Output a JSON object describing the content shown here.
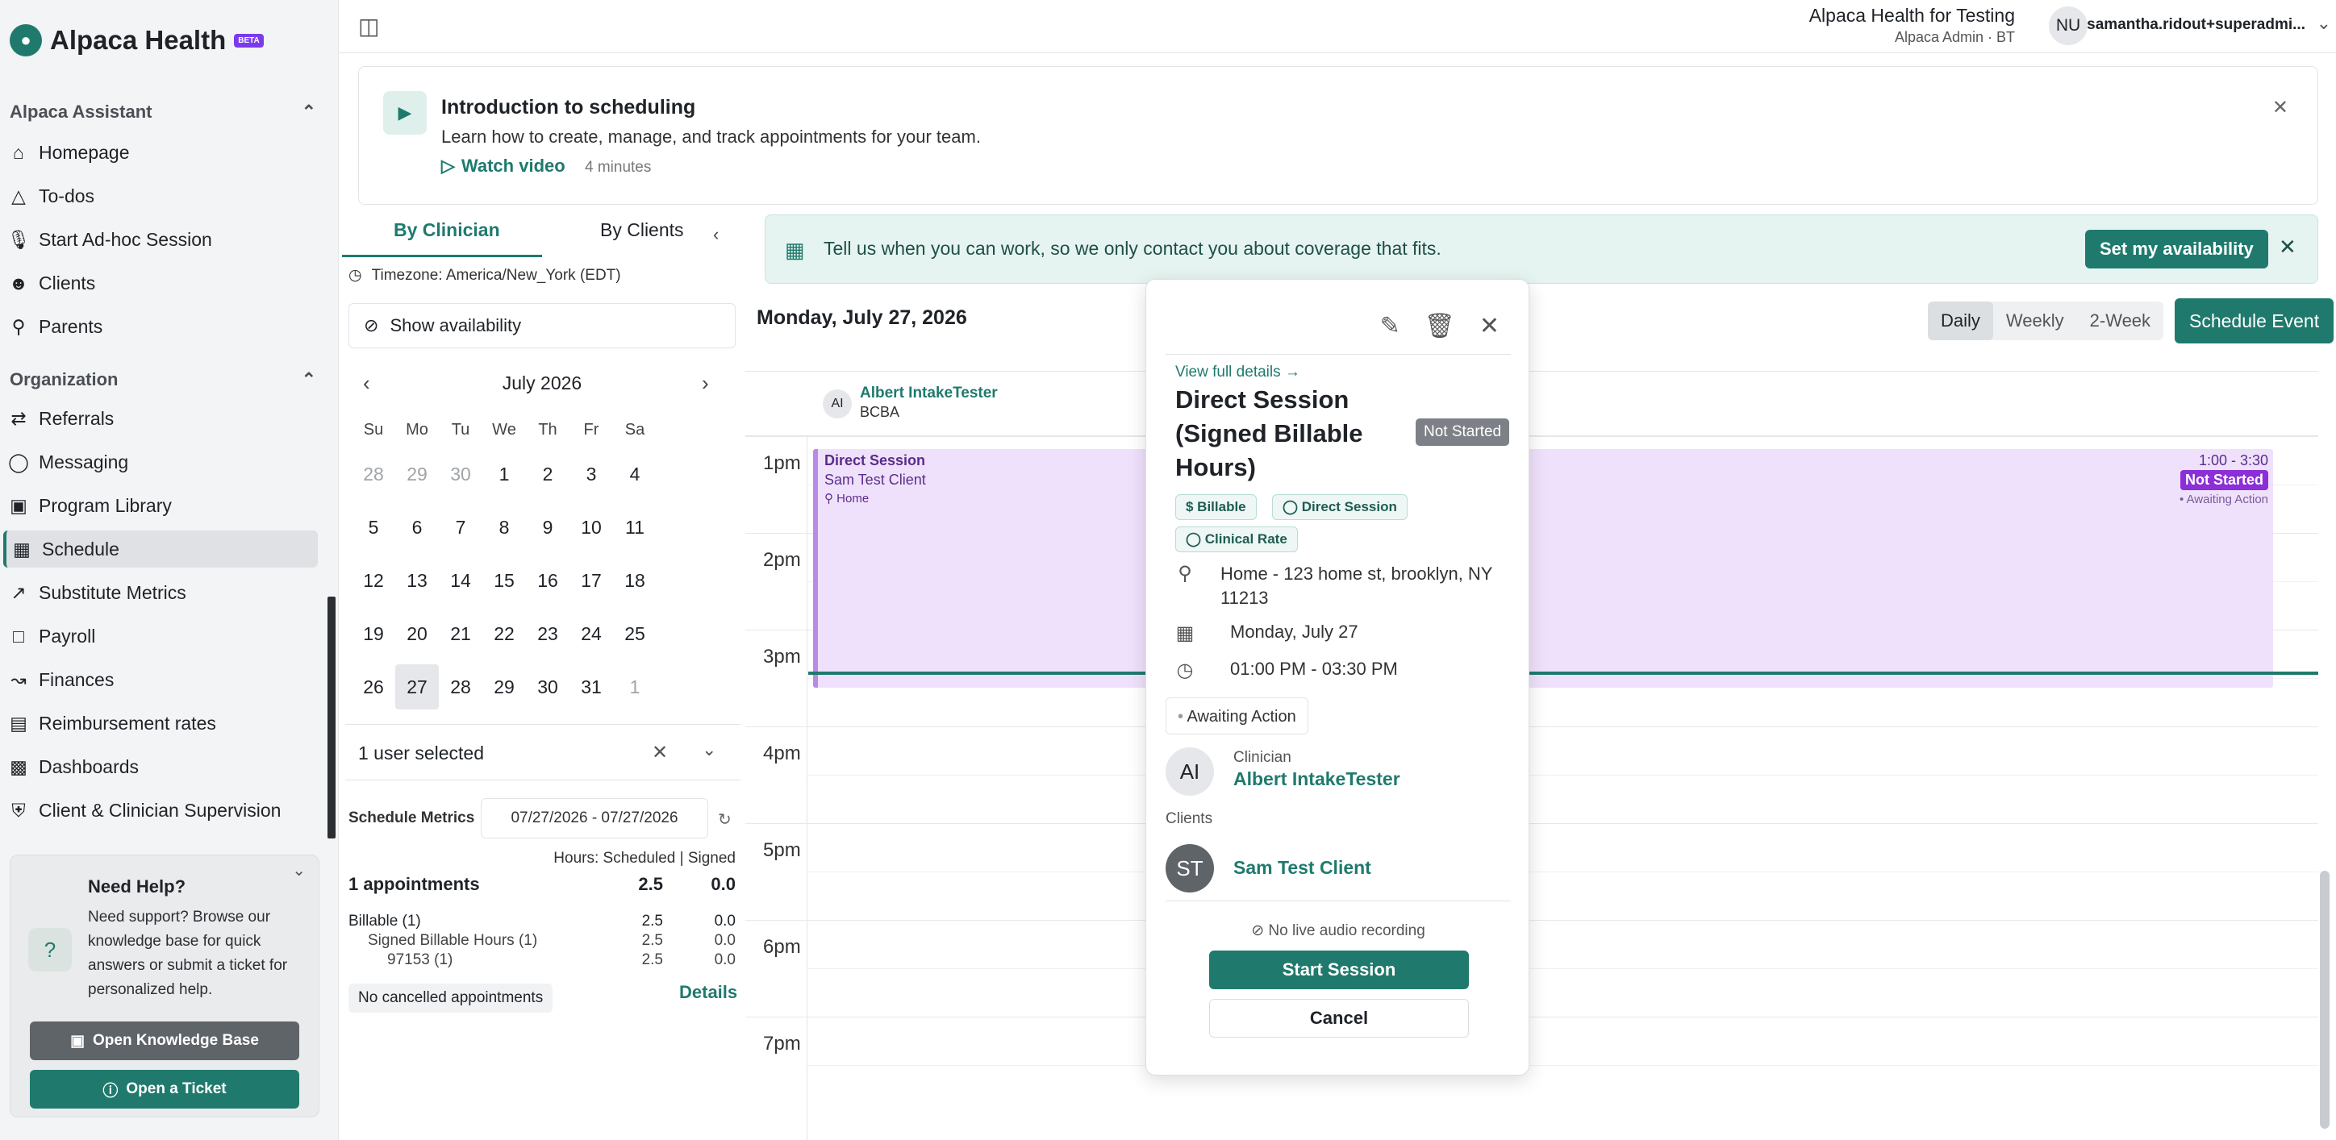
{
  "app": {
    "name": "Alpaca Health",
    "badge": "BETA"
  },
  "sidebar": {
    "section1": "Alpaca Assistant",
    "items1": [
      "Homepage",
      "To-dos",
      "Start Ad-hoc Session",
      "Clients",
      "Parents"
    ],
    "section2": "Organization",
    "items2": [
      "Referrals",
      "Messaging",
      "Program Library",
      "Schedule",
      "Substitute Metrics",
      "Payroll",
      "Finances",
      "Reimbursement rates",
      "Dashboards",
      "Client & Clinician Supervision"
    ],
    "active": "Schedule"
  },
  "help": {
    "title": "Need Help?",
    "text": "Need support? Browse our knowledge base for quick answers or submit a ticket for personalized help.",
    "kb_button": "Open Knowledge Base",
    "ticket_button": "Open a Ticket"
  },
  "topbar": {
    "org_name": "Alpaca Health for Testing",
    "org_sub": "Alpaca Admin · BT",
    "avatar": "NU",
    "email": "samantha.ridout+superadmi..."
  },
  "intro": {
    "title": "Introduction to scheduling",
    "text": "Learn how to create, manage, and track appointments for your team.",
    "link": "Watch video",
    "duration": "4 minutes"
  },
  "left_panel": {
    "tab_clinician": "By Clinician",
    "tab_clients": "By Clients",
    "timezone": "Timezone: America/New_York (EDT)",
    "show_availability": "Show availability",
    "month_label": "July 2026",
    "dow": [
      "Su",
      "Mo",
      "Tu",
      "We",
      "Th",
      "Fr",
      "Sa"
    ],
    "weeks": [
      [
        "28",
        "29",
        "30",
        "1",
        "2",
        "3",
        "4"
      ],
      [
        "5",
        "6",
        "7",
        "8",
        "9",
        "10",
        "11"
      ],
      [
        "12",
        "13",
        "14",
        "15",
        "16",
        "17",
        "18"
      ],
      [
        "19",
        "20",
        "21",
        "22",
        "23",
        "24",
        "25"
      ],
      [
        "26",
        "27",
        "28",
        "29",
        "30",
        "31",
        "1"
      ]
    ],
    "selected_day": "27",
    "user_select": "1 user selected"
  },
  "metrics": {
    "title": "Schedule Metrics",
    "range": "07/27/2026 - 07/27/2026",
    "hours_header": "Hours:  Scheduled | Signed",
    "appointments": {
      "label": "1 appointments",
      "scheduled": "2.5",
      "signed": "0.0"
    },
    "rows": [
      {
        "label": "Billable (1)",
        "scheduled": "2.5",
        "signed": "0.0"
      },
      {
        "label": "Signed Billable Hours (1)",
        "scheduled": "2.5",
        "signed": "0.0"
      },
      {
        "label": "97153 (1)",
        "scheduled": "2.5",
        "signed": "0.0"
      }
    ],
    "cancelled": "No cancelled appointments",
    "details": "Details"
  },
  "availability_banner": {
    "text": "Tell us when you can work, so we only contact you about coverage that fits.",
    "button": "Set my availability"
  },
  "calendar": {
    "date": "Monday, July 27, 2026",
    "views": [
      "Daily",
      "Weekly",
      "2-Week"
    ],
    "active_view": "Daily",
    "schedule_button": "Schedule Event",
    "clinician": {
      "initials": "AI",
      "name": "Albert IntakeTester",
      "role": "BCBA"
    },
    "hours": [
      "1pm",
      "2pm",
      "3pm",
      "4pm",
      "5pm",
      "6pm",
      "7pm"
    ],
    "event": {
      "title": "Direct Session",
      "client": "Sam Test Client",
      "location": "Home",
      "time": "1:00 - 3:30",
      "status": "Not Started",
      "action": "• Awaiting Action"
    }
  },
  "popover": {
    "view_link": "View full details →",
    "title": "Direct Session (Signed Billable Hours)",
    "status": "Not Started",
    "chips": [
      "$ Billable",
      "◯ Direct Session",
      "◯ Clinical Rate"
    ],
    "address": "Home - 123 home st, brooklyn, NY 11213",
    "date": "Monday, July 27",
    "time": "01:00 PM - 03:30 PM",
    "awaiting": "Awaiting Action",
    "clinician_label": "Clinician",
    "clinician_initials": "AI",
    "clinician_name": "Albert IntakeTester",
    "clients_label": "Clients",
    "client_initials": "ST",
    "client_name": "Sam Test Client",
    "audio": "No live audio recording",
    "start_button": "Start Session",
    "cancel_button": "Cancel"
  }
}
